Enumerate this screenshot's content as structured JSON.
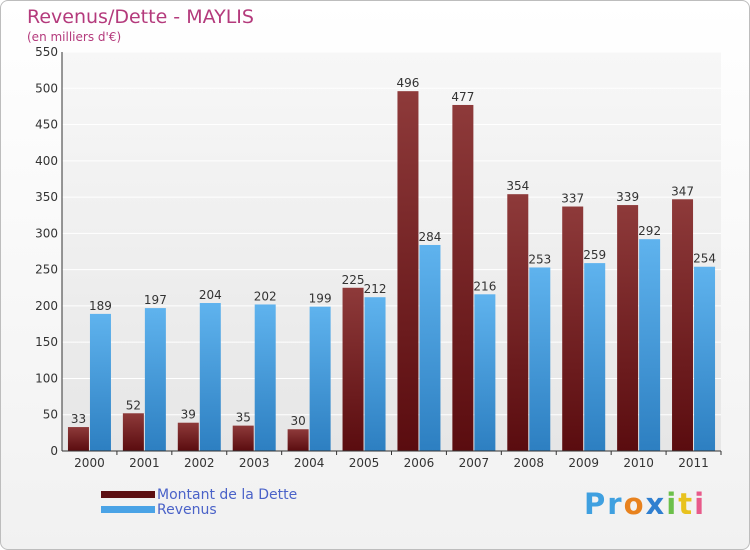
{
  "chart_data": {
    "type": "bar",
    "title": "Revenus/Dette - MAYLIS",
    "subtitle": "(en milliers d'€)",
    "categories": [
      "2000",
      "2001",
      "2002",
      "2003",
      "2004",
      "2005",
      "2006",
      "2007",
      "2008",
      "2009",
      "2010",
      "2011"
    ],
    "series": [
      {
        "name": "Montant de la Dette",
        "color": "#7a1e20",
        "values": [
          33,
          52,
          39,
          35,
          30,
          225,
          496,
          477,
          354,
          337,
          339,
          347
        ]
      },
      {
        "name": "Revenus",
        "color": "#4aa3e6",
        "values": [
          189,
          197,
          204,
          202,
          199,
          212,
          284,
          216,
          253,
          259,
          292,
          254
        ]
      }
    ],
    "ylim": [
      0,
      550
    ],
    "yticks": [
      0,
      50,
      100,
      150,
      200,
      250,
      300,
      350,
      400,
      450,
      500,
      550
    ],
    "grid": true,
    "legend": "bottom-left"
  },
  "logo": {
    "letters": [
      {
        "ch": "P",
        "color": "#3fa0e0"
      },
      {
        "ch": "r",
        "color": "#3fa0e0"
      },
      {
        "ch": "o",
        "color": "#e8821e"
      },
      {
        "ch": "x",
        "color": "#2f7fd0"
      },
      {
        "ch": "i",
        "color": "#6cc04a"
      },
      {
        "ch": "t",
        "color": "#e8c21e"
      },
      {
        "ch": "i",
        "color": "#e85a8a"
      }
    ]
  }
}
